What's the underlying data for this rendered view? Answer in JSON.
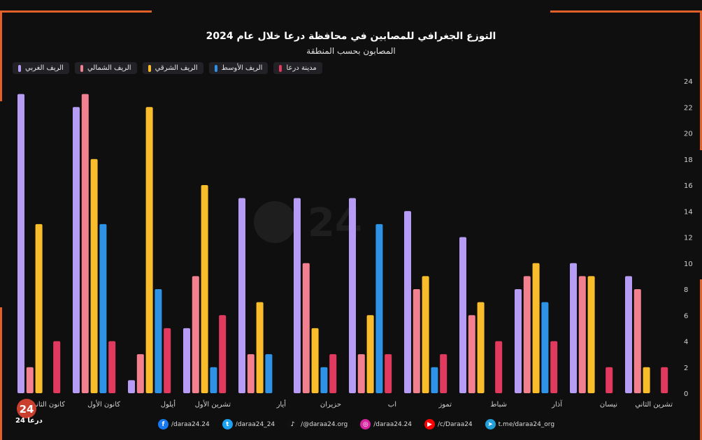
{
  "chart_data": {
    "type": "bar",
    "title": "التوزع الجغرافي للمصابين في محافظة درعا خلال عام 2024",
    "subtitle": "المصابون بحسب المنطقة",
    "categories": [
      "كانون الثاني",
      "كانون الأول",
      "أيلول",
      "تشرين الأول",
      "أيار",
      "حزيران",
      "اب",
      "تموز",
      "شباط",
      "آذار",
      "نيسان",
      "تشرين الثاني"
    ],
    "series": [
      {
        "name": "الريف الغربي",
        "color": "#b79cf5",
        "values": [
          23,
          22,
          1,
          5,
          15,
          15,
          15,
          14,
          12,
          8,
          10,
          9
        ]
      },
      {
        "name": "الريف الشمالي",
        "color": "#f2808f",
        "values": [
          2,
          23,
          3,
          9,
          3,
          10,
          3,
          8,
          6,
          9,
          9,
          8
        ]
      },
      {
        "name": "الريف الشرقي",
        "color": "#f9bd2b",
        "values": [
          13,
          18,
          22,
          16,
          7,
          5,
          6,
          9,
          7,
          10,
          9,
          2
        ]
      },
      {
        "name": "الريف الأوسط",
        "color": "#2e93e6",
        "values": [
          0,
          13,
          8,
          2,
          3,
          2,
          13,
          2,
          0,
          7,
          0,
          0
        ]
      },
      {
        "name": "مدينة درعا",
        "color": "#e23a5e",
        "values": [
          4,
          4,
          5,
          6,
          0,
          3,
          3,
          3,
          4,
          4,
          2,
          2
        ]
      }
    ],
    "ylim": [
      0,
      24
    ],
    "yticks": [
      0,
      2,
      4,
      6,
      8,
      10,
      12,
      14,
      16,
      18,
      20,
      22,
      24
    ],
    "grid": false,
    "legend_position": "top-left"
  },
  "branding": {
    "logo_number": "24",
    "logo_text": "درعا 24",
    "watermark": "24"
  },
  "social": [
    {
      "icon": "facebook-icon",
      "label": "/daraa24.24",
      "color": "#1877f2",
      "glyph": "f"
    },
    {
      "icon": "twitter-icon",
      "label": "/daraa24_24",
      "color": "#1da1f2",
      "glyph": "t"
    },
    {
      "icon": "tiktok-icon",
      "label": "/@daraa24.org",
      "color": "#111111",
      "glyph": "♪"
    },
    {
      "icon": "instagram-icon",
      "label": "/daraa24.24",
      "color": "#d6249f",
      "glyph": "◎"
    },
    {
      "icon": "youtube-icon",
      "label": "/c/Daraa24",
      "color": "#ff0000",
      "glyph": "▶"
    },
    {
      "icon": "telegram-icon",
      "label": "t.me/daraa24_org",
      "color": "#229ed9",
      "glyph": "➤"
    }
  ]
}
